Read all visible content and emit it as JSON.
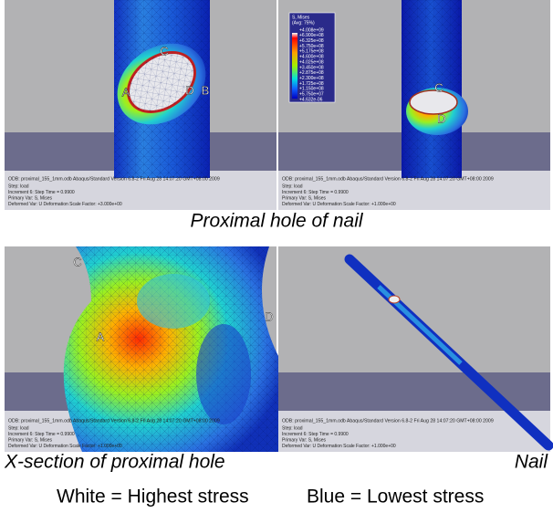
{
  "panels": [
    {
      "labels": [
        "A",
        "B",
        "C",
        "D"
      ],
      "footer": {
        "odb": "ODB: proximal_155_1mm.odb    Abaqus/Standard Version 6.8-2    Fri Aug 28 14:07:20 GMT+08:00 2009",
        "step": "Step: load",
        "increment": "Increment    6: Step Time =    0.9900",
        "primary": "Primary Var: S, Mises",
        "deformed": "Deformed Var: U   Deformation Scale Factor: +3.000e+00"
      }
    },
    {
      "labels": [
        "C",
        "D"
      ],
      "footer": {
        "odb": "ODB: proximal_155_1mm.odb    Abaqus/Standard Version 6.8-2    Fri Aug 28 14:07:20 GMT+08:00 2009",
        "step": "Step: load",
        "increment": "Increment    6: Step Time =    0.9900",
        "primary": "Primary Var: S, Mises",
        "deformed": "Deformed Var: U   Deformation Scale Factor: +1.000e+00"
      }
    },
    {
      "labels": [
        "C",
        "A",
        "D"
      ],
      "footer": {
        "odb": "ODB: proximal_155_1mm.odb    Abaqus/Standard Version 6.8-2    Fri Aug 28 14:07:20 GMT+08:00 2009",
        "step": "Step: load",
        "increment": "Increment    6: Step Time =    0.9900",
        "primary": "Primary Var: S, Mises",
        "deformed": "Deformed Var: U   Deformation Scale Factor: +1.000e+00"
      }
    },
    {
      "labels": [],
      "footer": {
        "odb": "ODB: proximal_155_1mm.odb    Abaqus/Standard Version 6.8-2    Fri Aug 28 14:07:20 GMT+08:00 2009",
        "step": "Step: load",
        "increment": "Increment    6: Step Time =    0.9900",
        "primary": "Primary Var: S, Mises",
        "deformed": "Deformed Var: U   Deformation Scale Factor: +1.000e+00"
      }
    }
  ],
  "legend": {
    "title": "S, Mises",
    "subtitle": "(Avg: 75%)",
    "values": [
      "+4.008e+09",
      "+6.900e+08",
      "+6.325e+08",
      "+5.750e+08",
      "+5.175e+08",
      "+4.600e+08",
      "+4.025e+08",
      "+3.450e+08",
      "+2.875e+08",
      "+2.300e+08",
      "+1.725e+08",
      "+1.150e+08",
      "+5.750e+07",
      "+4.632e-06"
    ]
  },
  "captions": {
    "top": "Proximal hole of nail",
    "bottom_left": "X-section of proximal hole",
    "bottom_right": "Nail"
  },
  "key": {
    "white": "White = Highest stress",
    "blue": "Blue = Lowest stress"
  }
}
